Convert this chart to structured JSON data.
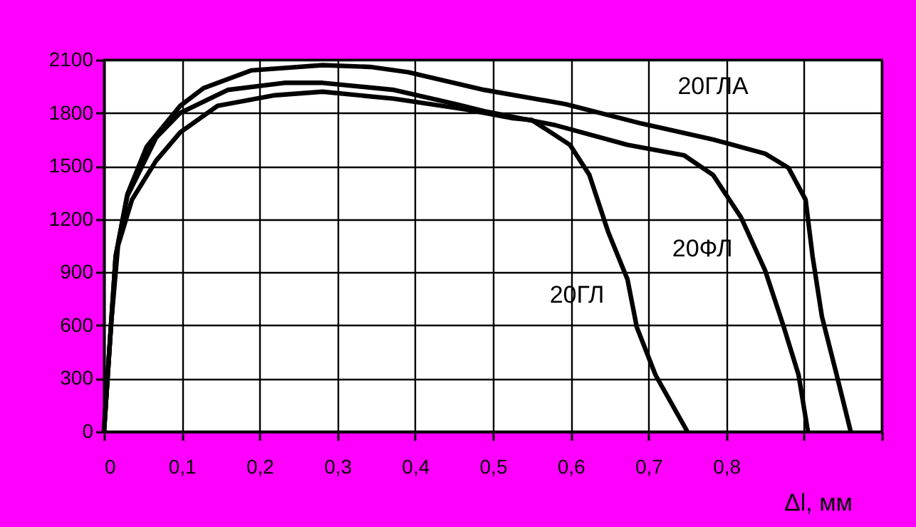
{
  "chart_data": {
    "type": "line",
    "xlabel": "Δl, мм",
    "xlim": [
      0,
      1
    ],
    "ylim": [
      0,
      2100
    ],
    "xticks": [
      0,
      {
        "value": 0.1,
        "label": "0,1"
      },
      {
        "value": 0.2,
        "label": "0,2"
      },
      {
        "value": 0.3,
        "label": "0,3"
      },
      {
        "value": 0.4,
        "label": "0,4"
      },
      {
        "value": 0.5,
        "label": "0,5"
      },
      {
        "value": 0.6,
        "label": "0,6"
      },
      {
        "value": 0.7,
        "label": "0,7"
      },
      {
        "value": 0.8,
        "label": "0,8"
      },
      {
        "value": 0.9,
        "label": null
      },
      {
        "value": 1,
        "label": null
      }
    ],
    "yticks": [
      0,
      300,
      600,
      900,
      1200,
      1500,
      1800,
      2100
    ],
    "grid": true,
    "marker": "none",
    "line_style": "solid",
    "series": [
      {
        "name": "20ГЛА",
        "color": "#000000",
        "x": [
          0,
          0.009,
          0.015,
          0.03,
          0.055,
          0.098,
          0.128,
          0.189,
          0.281,
          0.342,
          0.391,
          0.489,
          0.593,
          0.691,
          0.783,
          0.85,
          0.88,
          0.902,
          0.911,
          0.923,
          0.942,
          0.96
        ],
        "values": [
          0,
          600,
          990,
          1340,
          1610,
          1840,
          1940,
          2040,
          2070,
          2060,
          2030,
          1930,
          1850,
          1740,
          1650,
          1570,
          1490,
          1310,
          990,
          650,
          320,
          0
        ]
      },
      {
        "name": "20ФЛ",
        "color": "#000000",
        "x": [
          0,
          0.009,
          0.015,
          0.03,
          0.067,
          0.098,
          0.159,
          0.232,
          0.281,
          0.373,
          0.452,
          0.489,
          0.581,
          0.673,
          0.746,
          0.783,
          0.819,
          0.85,
          0.874,
          0.893,
          0.905
        ],
        "values": [
          0,
          600,
          990,
          1330,
          1660,
          1800,
          1930,
          1970,
          1970,
          1930,
          1850,
          1810,
          1730,
          1620,
          1560,
          1450,
          1210,
          910,
          590,
          320,
          0
        ]
      },
      {
        "name": "20ГЛ",
        "color": "#000000",
        "x": [
          0,
          0.009,
          0.018,
          0.036,
          0.067,
          0.098,
          0.146,
          0.22,
          0.281,
          0.373,
          0.465,
          0.526,
          0.55,
          0.599,
          0.624,
          0.648,
          0.673,
          0.685,
          0.709,
          0.75
        ],
        "values": [
          0,
          600,
          1050,
          1310,
          1530,
          1690,
          1840,
          1900,
          1920,
          1880,
          1820,
          1770,
          1760,
          1620,
          1450,
          1130,
          860,
          590,
          320,
          0
        ]
      }
    ]
  }
}
